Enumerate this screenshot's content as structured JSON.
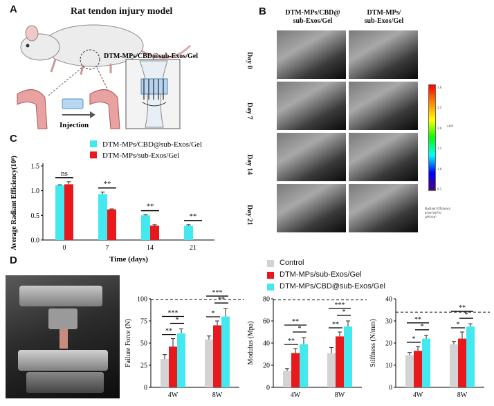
{
  "panelA": {
    "letter": "A",
    "title": "Rat tendon injury model",
    "material_label": "DTM-MPs/CBD@sub-Exos/Gel",
    "arrow_label": "Injection"
  },
  "panelB": {
    "letter": "B",
    "col1": "DTM-MPs/CBD@ sub-Exos/Gel",
    "col1_line1": "DTM-MPs/CBD@",
    "col1_line2": "sub-Exos/Gel",
    "col2_line1": "DTM-MPs/",
    "col2_line2": "sub-Exos/Gel",
    "rows": [
      "Day 0",
      "Day 7",
      "Day 14",
      "Day 21"
    ],
    "colorbar_ticks": [
      "3.0",
      "2.5",
      "2.0",
      "1.5",
      "1.0",
      "0.5"
    ],
    "colorbar_exp": "x10⁸",
    "colorbar_label1": "Radiant Efficiency",
    "colorbar_label2": "p/sec/cm²/sr",
    "colorbar_label3": "µW/cm²"
  },
  "panelC": {
    "letter": "C"
  },
  "panelD": {
    "letter": "D"
  },
  "colors": {
    "cyan": "#44e8ef",
    "red": "#e8181c",
    "gray": "#d3d3d3"
  },
  "chart_data": [
    {
      "type": "bar",
      "panel": "C",
      "categories": [
        "0",
        "7",
        "14",
        "21"
      ],
      "xlabel": "Time (days)",
      "ylabel": "Average Radiant Efficiency(10⁸)",
      "ylim": [
        0,
        1.5
      ],
      "yticks": [
        "0.0",
        "0.5",
        "1.0",
        "1.5"
      ],
      "series": [
        {
          "name": "DTM-MPs/CBD@sub-Exos/Gel",
          "values": [
            1.11,
            0.93,
            0.5,
            0.29
          ],
          "errors": [
            0.01,
            0.04,
            0.01,
            0.02
          ]
        },
        {
          "name": "DTM-MPs/sub-Exos/Gel",
          "values": [
            1.13,
            0.62,
            0.29,
            null
          ],
          "errors": [
            0.05,
            0.01,
            0.02,
            null
          ]
        }
      ],
      "significance": [
        "ns",
        "**",
        "**",
        "**"
      ]
    },
    {
      "type": "bar",
      "panel": "D",
      "categories": [
        "4W",
        "8W"
      ],
      "ylabel": "Failure Force (N)",
      "ylim": [
        0,
        100
      ],
      "yticks": [
        "0",
        "25",
        "50",
        "75",
        "100"
      ],
      "reference_line": 99,
      "series": [
        {
          "name": "Control",
          "values": [
            32,
            54
          ],
          "errors": [
            5,
            4
          ]
        },
        {
          "name": "DTM-MPs/sub-Exos/Gel",
          "values": [
            46,
            70
          ],
          "errors": [
            9,
            5
          ]
        },
        {
          "name": "DTM-MPs/CBD@sub-Exos/Gel",
          "values": [
            61,
            80
          ],
          "errors": [
            5,
            9
          ]
        }
      ],
      "significance": [
        [
          "**",
          "***",
          "*"
        ],
        [
          "*",
          "***",
          "**"
        ]
      ]
    },
    {
      "type": "bar",
      "panel": "D",
      "categories": [
        "4W",
        "8W"
      ],
      "ylabel": "Modulus (Mpa)",
      "ylim": [
        0,
        80
      ],
      "yticks": [
        "0",
        "20",
        "40",
        "60",
        "80"
      ],
      "reference_line": 79,
      "series": [
        {
          "name": "Control",
          "values": [
            15,
            31
          ],
          "errors": [
            2,
            5
          ]
        },
        {
          "name": "DTM-MPs/sub-Exos/Gel",
          "values": [
            31,
            46
          ],
          "errors": [
            4,
            4
          ]
        },
        {
          "name": "DTM-MPs/CBD@sub-Exos/Gel",
          "values": [
            39,
            55
          ],
          "errors": [
            6,
            5
          ]
        }
      ],
      "significance": [
        [
          "**",
          "**",
          "*"
        ],
        [
          "**",
          "***",
          "*"
        ]
      ]
    },
    {
      "type": "bar",
      "panel": "D",
      "categories": [
        "4W",
        "8W"
      ],
      "ylabel": "Stiffness (N/mm)",
      "ylim": [
        0,
        40
      ],
      "yticks": [
        "0",
        "10",
        "20",
        "30",
        "40"
      ],
      "reference_line": 34,
      "series": [
        {
          "name": "Control",
          "values": [
            14.5,
            19.5
          ],
          "errors": [
            1.2,
            1.2
          ]
        },
        {
          "name": "DTM-MPs/sub-Exos/Gel",
          "values": [
            16.5,
            22
          ],
          "errors": [
            2,
            3
          ]
        },
        {
          "name": "DTM-MPs/CBD@sub-Exos/Gel",
          "values": [
            22,
            27.5
          ],
          "errors": [
            1.5,
            1.2
          ]
        }
      ],
      "significance": [
        [
          "*",
          "**",
          "*"
        ],
        [
          "*",
          "**",
          "*"
        ]
      ]
    }
  ]
}
